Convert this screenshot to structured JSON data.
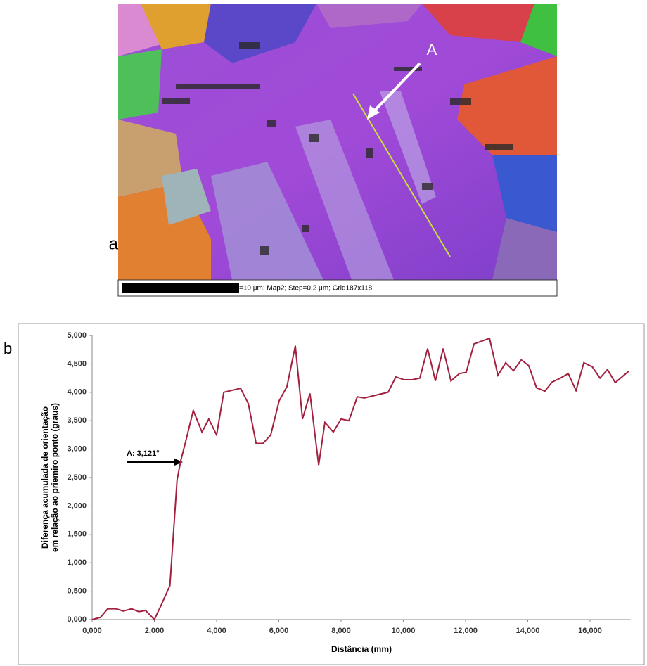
{
  "figure": {
    "panel_a": {
      "label": "a",
      "marker": "A",
      "scale_text": "=10 μm; Map2; Step=0.2 μm; Grid187x118"
    },
    "panel_b_label": "b"
  },
  "chart_data": {
    "type": "line",
    "y_label_lines": [
      "Diferença acumulada de orientação",
      "em relação ao priemiro ponto (graus)"
    ],
    "x_label": "Distância (mm)",
    "annotation": "A: 3,121°",
    "series": [
      {
        "color": "#a3203e",
        "x": [
          0,
          0.27,
          0.5,
          0.77,
          1.0,
          1.27,
          1.5,
          1.72,
          2.0,
          2.24,
          2.5,
          2.73,
          2.85,
          3.0,
          3.25,
          3.53,
          3.75,
          4.0,
          4.23,
          4.77,
          5.02,
          5.27,
          5.49,
          5.74,
          6.01,
          6.26,
          6.53,
          6.76,
          7.0,
          7.28,
          7.48,
          7.75,
          8.0,
          8.25,
          8.52,
          8.75,
          9.27,
          9.51,
          9.76,
          10.03,
          10.28,
          10.53,
          10.78,
          11.03,
          11.28,
          11.53,
          11.8,
          12.02,
          12.27,
          12.77,
          13.04,
          13.29,
          13.54,
          13.79,
          14.03,
          14.28,
          14.55,
          14.78,
          15.05,
          15.3,
          15.55,
          15.8,
          16.07,
          16.32,
          16.56,
          16.81,
          17.24
        ],
        "values": [
          0,
          0.04,
          0.19,
          0.19,
          0.15,
          0.19,
          0.14,
          0.16,
          0,
          0.28,
          0.6,
          2.46,
          2.8,
          3.121,
          3.68,
          3.3,
          3.53,
          3.25,
          4.0,
          4.07,
          3.8,
          3.1,
          3.1,
          3.25,
          3.85,
          4.1,
          4.82,
          3.53,
          3.98,
          2.72,
          3.47,
          3.3,
          3.53,
          3.5,
          3.92,
          3.9,
          3.97,
          4.0,
          4.27,
          4.22,
          4.22,
          4.25,
          4.77,
          4.2,
          4.77,
          4.2,
          4.33,
          4.35,
          4.85,
          4.95,
          4.3,
          4.52,
          4.38,
          4.57,
          4.47,
          4.08,
          4.02,
          4.18,
          4.25,
          4.33,
          4.03,
          4.52,
          4.45,
          4.25,
          4.4,
          4.17,
          4.37
        ]
      }
    ],
    "xlim": [
      0,
      17.3
    ],
    "ylim": [
      0,
      5
    ],
    "xticks": [
      {
        "value": 0,
        "label": "0,000"
      },
      {
        "value": 2,
        "label": "2,000"
      },
      {
        "value": 4,
        "label": "4,000"
      },
      {
        "value": 6,
        "label": "6,000"
      },
      {
        "value": 8,
        "label": "8,000"
      },
      {
        "value": 10,
        "label": "10,000"
      },
      {
        "value": 12,
        "label": "12,000"
      },
      {
        "value": 14,
        "label": "14,000"
      },
      {
        "value": 16,
        "label": "16,000"
      }
    ],
    "yticks": [
      {
        "value": 0,
        "label": "0,000"
      },
      {
        "value": 0.5,
        "label": "0,500"
      },
      {
        "value": 1,
        "label": "1,000"
      },
      {
        "value": 1.5,
        "label": "1,500"
      },
      {
        "value": 2,
        "label": "2,000"
      },
      {
        "value": 2.5,
        "label": "2,500"
      },
      {
        "value": 3,
        "label": "3,000"
      },
      {
        "value": 3.5,
        "label": "3,500"
      },
      {
        "value": 4,
        "label": "4,000"
      },
      {
        "value": 4.5,
        "label": "4,500"
      },
      {
        "value": 5,
        "label": "5,000"
      }
    ],
    "grid": false
  }
}
